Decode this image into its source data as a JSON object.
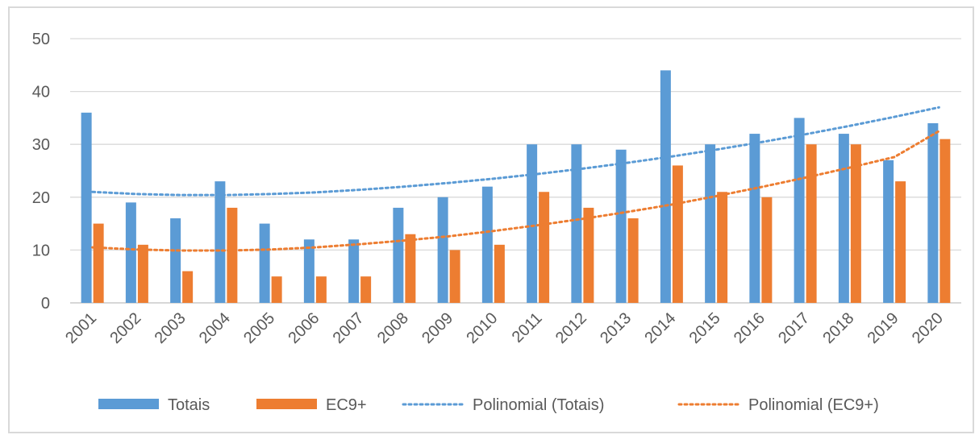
{
  "chart_data": {
    "type": "bar",
    "categories": [
      "2001",
      "2002",
      "2003",
      "2004",
      "2005",
      "2006",
      "2007",
      "2008",
      "2009",
      "2010",
      "2011",
      "2012",
      "2013",
      "2014",
      "2015",
      "2016",
      "2017",
      "2018",
      "2019",
      "2020"
    ],
    "series": [
      {
        "name": "Totais",
        "color": "#5b9bd5",
        "values": [
          36,
          19,
          16,
          23,
          15,
          12,
          12,
          18,
          20,
          22,
          30,
          30,
          29,
          44,
          30,
          32,
          35,
          32,
          27,
          34
        ]
      },
      {
        "name": "EC9+",
        "color": "#ed7d31",
        "values": [
          15,
          11,
          6,
          18,
          5,
          5,
          5,
          13,
          10,
          11,
          21,
          18,
          16,
          26,
          21,
          20,
          30,
          30,
          23,
          31
        ]
      }
    ],
    "trendlines": [
      {
        "name": "Polinomial (Totais)",
        "type": "polynomial",
        "color": "#5b9bd5",
        "values": [
          21.0,
          20.6,
          20.4,
          20.4,
          20.6,
          20.9,
          21.4,
          22.0,
          22.7,
          23.5,
          24.4,
          25.4,
          26.5,
          27.7,
          29.0,
          30.4,
          31.9,
          33.5,
          35.2,
          37.0
        ]
      },
      {
        "name": "Polinomial (EC9+)",
        "type": "polynomial",
        "color": "#ed7d31",
        "values": [
          10.5,
          10.1,
          9.9,
          9.9,
          10.1,
          10.5,
          11.1,
          11.8,
          12.6,
          13.6,
          14.7,
          15.9,
          17.2,
          18.6,
          20.2,
          21.9,
          23.7,
          25.6,
          27.6,
          32.5
        ]
      }
    ],
    "yaxis": {
      "min": 0,
      "max": 50,
      "ticks": [
        0,
        10,
        20,
        30,
        40,
        50
      ]
    },
    "grid": true,
    "legend_position": "bottom",
    "title": "",
    "xlabel": "",
    "ylabel": ""
  }
}
